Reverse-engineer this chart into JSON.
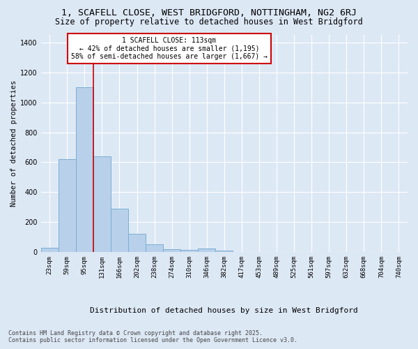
{
  "title1": "1, SCAFELL CLOSE, WEST BRIDGFORD, NOTTINGHAM, NG2 6RJ",
  "title2": "Size of property relative to detached houses in West Bridgford",
  "xlabel": "Distribution of detached houses by size in West Bridgford",
  "ylabel": "Number of detached properties",
  "categories": [
    "23sqm",
    "59sqm",
    "95sqm",
    "131sqm",
    "166sqm",
    "202sqm",
    "238sqm",
    "274sqm",
    "310sqm",
    "346sqm",
    "382sqm",
    "417sqm",
    "453sqm",
    "489sqm",
    "525sqm",
    "561sqm",
    "597sqm",
    "632sqm",
    "668sqm",
    "704sqm",
    "740sqm"
  ],
  "values": [
    30,
    620,
    1100,
    640,
    290,
    120,
    50,
    20,
    17,
    25,
    10,
    0,
    0,
    0,
    0,
    0,
    0,
    0,
    0,
    0,
    0
  ],
  "bar_color": "#b8d0ea",
  "bar_edge_color": "#7aafd4",
  "vline_color": "#cc0000",
  "vline_pos": 2.5,
  "annotation_text": "1 SCAFELL CLOSE: 113sqm\n← 42% of detached houses are smaller (1,195)\n58% of semi-detached houses are larger (1,667) →",
  "bg_color": "#dde8f5",
  "plot_bg_color": "#dde8f5",
  "grid_color": "#ffffff",
  "footnote": "Contains HM Land Registry data © Crown copyright and database right 2025.\nContains public sector information licensed under the Open Government Licence v3.0.",
  "ylim": [
    0,
    1450
  ],
  "title1_fontsize": 9.5,
  "title2_fontsize": 8.5,
  "ylabel_fontsize": 7.5,
  "xlabel_fontsize": 8,
  "tick_fontsize": 6.5,
  "ytick_fontsize": 7,
  "annotation_fontsize": 7,
  "footnote_fontsize": 6
}
